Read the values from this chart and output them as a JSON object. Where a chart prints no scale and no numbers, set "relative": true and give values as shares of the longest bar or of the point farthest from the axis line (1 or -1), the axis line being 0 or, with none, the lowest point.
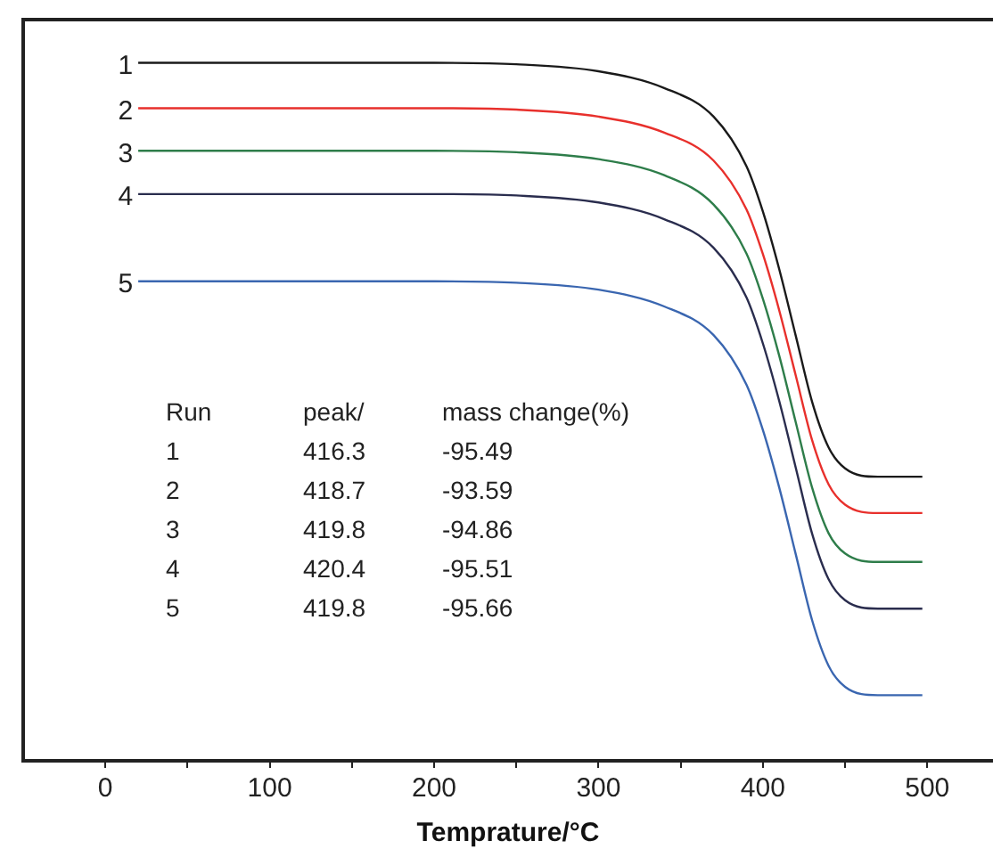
{
  "chart_data": {
    "type": "line",
    "xlabel": "Temprature/°C",
    "relative": true,
    "xlim": [
      -50,
      540
    ],
    "xticks": [
      0,
      {
        "value": 50,
        "label": null
      },
      100,
      {
        "value": 150,
        "label": null
      },
      200,
      {
        "value": 250,
        "label": null
      },
      300,
      {
        "value": 350,
        "label": null
      },
      400,
      {
        "value": 450,
        "label": null
      },
      500
    ],
    "x": [
      20,
      100,
      200,
      250,
      300,
      340,
      370,
      390,
      400,
      410,
      420,
      430,
      440,
      450,
      470,
      497
    ],
    "series": [
      {
        "name": "1",
        "color": "#1a1a1a",
        "values": [
          1,
          1,
          1,
          0.998,
          0.988,
          0.964,
          0.923,
          0.852,
          0.787,
          0.704,
          0.609,
          0.514,
          0.449,
          0.419,
          0.407,
          0.407
        ]
      },
      {
        "name": "2",
        "color": "#e8302c",
        "values": [
          0.935,
          0.935,
          0.935,
          0.933,
          0.923,
          0.9,
          0.86,
          0.79,
          0.726,
          0.645,
          0.552,
          0.459,
          0.396,
          0.367,
          0.355,
          0.355
        ]
      },
      {
        "name": "3",
        "color": "#2e7d4a",
        "values": [
          0.874,
          0.874,
          0.874,
          0.872,
          0.862,
          0.839,
          0.797,
          0.727,
          0.662,
          0.58,
          0.485,
          0.391,
          0.326,
          0.297,
          0.285,
          0.285
        ]
      },
      {
        "name": "4",
        "color": "#2a2d4e",
        "values": [
          0.812,
          0.812,
          0.812,
          0.81,
          0.8,
          0.776,
          0.735,
          0.664,
          0.598,
          0.515,
          0.42,
          0.325,
          0.26,
          0.23,
          0.218,
          0.218
        ]
      },
      {
        "name": "5",
        "color": "#3a66b0",
        "values": [
          0.687,
          0.687,
          0.687,
          0.685,
          0.675,
          0.651,
          0.61,
          0.539,
          0.474,
          0.391,
          0.296,
          0.201,
          0.136,
          0.106,
          0.094,
          0.094
        ]
      }
    ],
    "annotations": [
      "Run",
      "peak/",
      "mass change(%)",
      "1",
      "416.3",
      "-95.49",
      "2",
      "418.7",
      "-93.59",
      "3",
      "419.8",
      "-94.86",
      "4",
      "420.4",
      "-95.51",
      "5",
      "419.8",
      "-95.66"
    ],
    "legend": false,
    "grid": false,
    "marker": "none",
    "line_style": "solid"
  }
}
